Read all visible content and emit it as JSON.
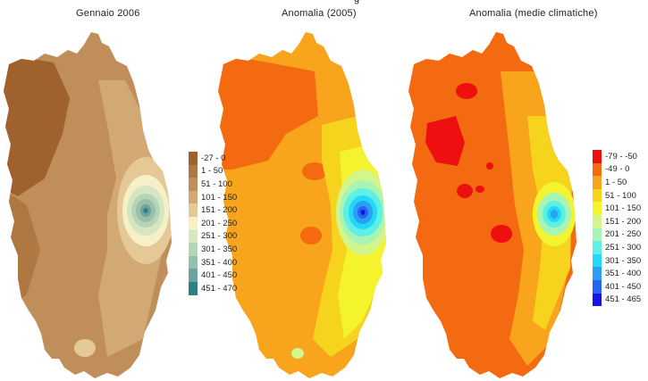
{
  "page_title_fragment": "g",
  "panels": [
    {
      "title": "Gennaio 2006",
      "legend": [
        {
          "label": "-27 - 0",
          "color": "#a0622d"
        },
        {
          "label": "1 - 50",
          "color": "#af7741"
        },
        {
          "label": "51 - 100",
          "color": "#c08e5a"
        },
        {
          "label": "101 - 150",
          "color": "#d2a874"
        },
        {
          "label": "151 - 200",
          "color": "#e4c996"
        },
        {
          "label": "201 - 250",
          "color": "#f6efc8"
        },
        {
          "label": "251 - 300",
          "color": "#d4e6c2"
        },
        {
          "label": "301 - 350",
          "color": "#b6d5b6"
        },
        {
          "label": "351 - 400",
          "color": "#98bfa9"
        },
        {
          "label": "401 - 450",
          "color": "#6fa29d"
        },
        {
          "label": "451 - 470",
          "color": "#2e7f86"
        }
      ]
    },
    {
      "title": "Anomalia (2005)",
      "legend": []
    },
    {
      "title": "Anomalia (medie climatiche)",
      "legend": [
        {
          "label": "-79 - -50",
          "color": "#ee1010"
        },
        {
          "label": "-49 - 0",
          "color": "#f46a10"
        },
        {
          "label": "1 - 50",
          "color": "#f8a41c"
        },
        {
          "label": "51 - 100",
          "color": "#f6d41e"
        },
        {
          "label": "101 - 150",
          "color": "#f4f42e"
        },
        {
          "label": "151 - 200",
          "color": "#d4f48c"
        },
        {
          "label": "201 - 250",
          "color": "#a8f4b4"
        },
        {
          "label": "251 - 300",
          "color": "#5ef0e4"
        },
        {
          "label": "301 - 350",
          "color": "#22d8f6"
        },
        {
          "label": "351 - 400",
          "color": "#2c9ef4"
        },
        {
          "label": "401 - 450",
          "color": "#2466f2"
        },
        {
          "label": "451 - 465",
          "color": "#1414e8"
        }
      ]
    }
  ]
}
